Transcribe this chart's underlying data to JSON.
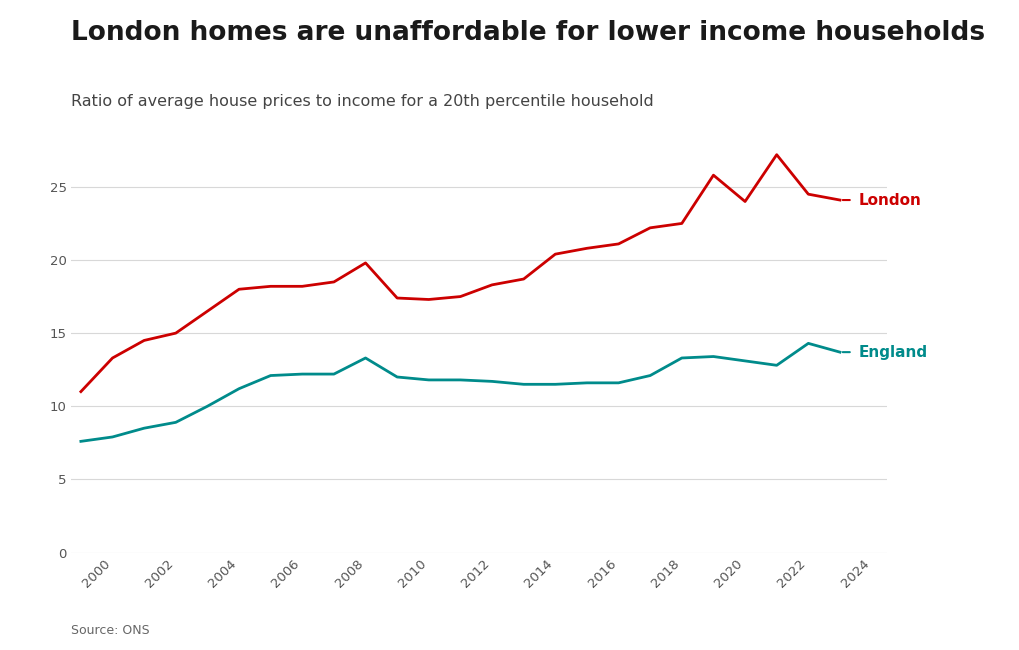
{
  "title": "London homes are unaffordable for lower income households",
  "subtitle": "Ratio of average house prices to income for a 20th percentile household",
  "source": "Source: ONS",
  "background_color": "#ffffff",
  "london_color": "#cc0000",
  "england_color": "#008b8b",
  "london_label": "London",
  "england_label": "England",
  "years": [
    1999,
    2000,
    2001,
    2002,
    2003,
    2004,
    2005,
    2006,
    2007,
    2008,
    2009,
    2010,
    2011,
    2012,
    2013,
    2014,
    2015,
    2016,
    2017,
    2018,
    2019,
    2020,
    2021,
    2022,
    2023
  ],
  "london_values": [
    11.0,
    13.3,
    14.5,
    15.0,
    16.5,
    18.0,
    18.2,
    18.2,
    18.5,
    19.8,
    17.4,
    17.3,
    17.5,
    18.3,
    18.7,
    20.4,
    20.8,
    21.1,
    22.2,
    22.5,
    25.8,
    24.0,
    27.2,
    24.5,
    24.1
  ],
  "england_values": [
    7.6,
    7.9,
    8.5,
    8.9,
    10.0,
    11.2,
    12.1,
    12.2,
    12.2,
    13.3,
    12.0,
    11.8,
    11.8,
    11.7,
    11.5,
    11.5,
    11.6,
    11.6,
    12.1,
    13.3,
    13.4,
    13.1,
    12.8,
    14.3,
    13.7
  ],
  "ylim": [
    0,
    28
  ],
  "yticks": [
    0,
    5,
    10,
    15,
    20,
    25
  ],
  "xlim": [
    1999,
    2024.5
  ],
  "grid_color": "#d8d8d8",
  "title_fontsize": 19,
  "subtitle_fontsize": 11.5,
  "label_fontsize": 11,
  "tick_fontsize": 9.5,
  "line_width": 2.0
}
